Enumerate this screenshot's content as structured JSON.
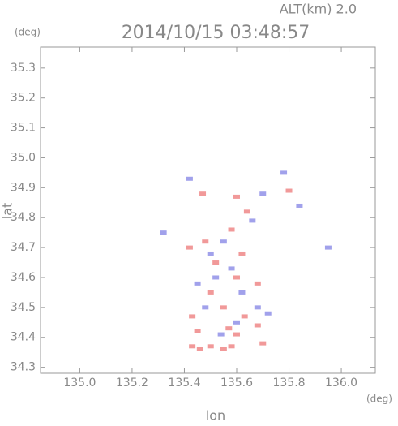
{
  "chart_data": {
    "type": "scatter",
    "title": "2014/10/15 03:48:57",
    "altitude_label": "ALT(km) 2.0",
    "y_unit": "(deg)",
    "x_unit": "(deg)",
    "ylabel": "lat",
    "xlabel": "lon",
    "xlim": [
      134.85,
      136.13
    ],
    "ylim": [
      34.28,
      35.37
    ],
    "xticks": [
      {
        "value": 135,
        "label": "135.0"
      },
      135.2,
      135.4,
      135.6,
      135.8,
      {
        "value": 136,
        "label": "136.0"
      }
    ],
    "yticks": [
      34.3,
      34.4,
      34.5,
      34.6,
      34.7,
      34.8,
      34.9,
      {
        "value": 35,
        "label": "35.0"
      },
      35.1,
      35.2,
      35.3
    ],
    "series": [
      {
        "color": "#ee8080",
        "x": [
          135.43,
          135.46,
          135.5,
          135.55,
          135.58,
          135.45,
          135.6,
          135.68,
          135.63,
          135.55,
          135.5,
          135.6,
          135.52,
          135.62,
          135.42,
          135.48,
          135.58,
          135.64,
          135.6,
          135.8,
          135.47,
          135.68,
          135.43,
          135.7,
          135.57
        ],
        "values": [
          34.37,
          34.36,
          34.37,
          34.36,
          34.37,
          34.42,
          34.41,
          34.44,
          34.47,
          34.5,
          34.55,
          34.6,
          34.65,
          34.68,
          34.7,
          34.72,
          34.76,
          34.82,
          34.87,
          34.89,
          34.88,
          34.58,
          34.47,
          34.38,
          34.43
        ]
      },
      {
        "color": "#8a8ae6",
        "x": [
          135.52,
          135.68,
          135.72,
          135.5,
          135.58,
          135.62,
          135.45,
          135.7,
          135.95,
          135.32,
          135.66,
          135.55,
          135.48,
          135.6,
          135.78,
          135.42,
          135.84,
          135.54
        ],
        "values": [
          34.6,
          34.5,
          34.48,
          34.68,
          34.63,
          34.55,
          34.58,
          34.88,
          34.7,
          34.75,
          34.79,
          34.72,
          34.5,
          34.45,
          34.95,
          34.93,
          34.84,
          34.41
        ]
      }
    ]
  }
}
